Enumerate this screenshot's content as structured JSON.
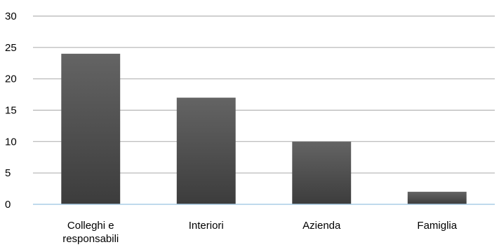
{
  "chart_data": {
    "type": "bar",
    "categories": [
      [
        "Colleghi e",
        "responsabili"
      ],
      [
        "Interiori"
      ],
      [
        "Azienda"
      ],
      [
        "Famiglia"
      ]
    ],
    "values": [
      24,
      17,
      10,
      2
    ],
    "title": "",
    "xlabel": "",
    "ylabel": "",
    "ylim": [
      0,
      30
    ],
    "yticks": [
      "0",
      "5",
      "10",
      "15",
      "20",
      "25",
      "30"
    ],
    "grid": true,
    "legend": "none",
    "colors": {
      "bar_top": "#646464",
      "bar_bottom": "#3c3c3c",
      "gridline": "#b4b4b4",
      "baseline": "#aacde6"
    }
  }
}
